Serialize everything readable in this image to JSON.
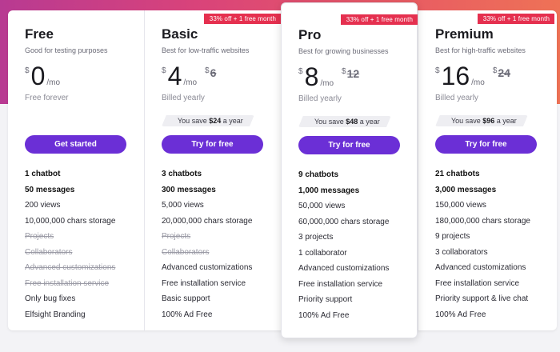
{
  "colors": {
    "accent_button": "#6b2fd6",
    "ribbon": "#e5304f",
    "gradient_start": "#b83a92",
    "gradient_end": "#ee7256"
  },
  "plans": [
    {
      "name": "Free",
      "subtitle": "Good for testing purposes",
      "currency": "$",
      "price": "0",
      "period": "/mo",
      "old_price": "",
      "billing": "Free forever",
      "ribbon": "",
      "save_prefix": "",
      "save_amount": "",
      "save_suffix": "",
      "button": "Get started",
      "features": [
        {
          "text": "1 chatbot",
          "style": "bold"
        },
        {
          "text": "50 messages",
          "style": "bold"
        },
        {
          "text": "200 views",
          "style": "normal"
        },
        {
          "text": "10,000,000 chars storage",
          "style": "normal"
        },
        {
          "text": "Projects",
          "style": "strike"
        },
        {
          "text": "Collaborators",
          "style": "strike"
        },
        {
          "text": "Advanced customizations",
          "style": "strike"
        },
        {
          "text": "Free installation service",
          "style": "strike"
        },
        {
          "text": "Only bug fixes",
          "style": "normal"
        },
        {
          "text": "Elfsight Branding",
          "style": "normal"
        }
      ]
    },
    {
      "name": "Basic",
      "subtitle": "Best for low-traffic websites",
      "currency": "$",
      "price": "4",
      "period": "/mo",
      "old_price": "6",
      "billing": "Billed yearly",
      "ribbon": "33% off + 1 free month",
      "save_prefix": "You save ",
      "save_amount": "$24",
      "save_suffix": " a year",
      "button": "Try for free",
      "features": [
        {
          "text": "3 chatbots",
          "style": "bold"
        },
        {
          "text": "300 messages",
          "style": "bold"
        },
        {
          "text": "5,000 views",
          "style": "normal"
        },
        {
          "text": "20,000,000 chars storage",
          "style": "normal"
        },
        {
          "text": "Projects",
          "style": "strike"
        },
        {
          "text": "Collaborators",
          "style": "strike"
        },
        {
          "text": "Advanced customizations",
          "style": "normal"
        },
        {
          "text": "Free installation service",
          "style": "normal"
        },
        {
          "text": "Basic support",
          "style": "normal"
        },
        {
          "text": "100% Ad Free",
          "style": "normal"
        }
      ]
    },
    {
      "name": "Pro",
      "subtitle": "Best for growing businesses",
      "currency": "$",
      "price": "8",
      "period": "/mo",
      "old_price": "12",
      "billing": "Billed yearly",
      "ribbon": "33% off + 1 free month",
      "save_prefix": "You save ",
      "save_amount": "$48",
      "save_suffix": " a year",
      "button": "Try for free",
      "features": [
        {
          "text": "9 chatbots",
          "style": "bold"
        },
        {
          "text": "1,000 messages",
          "style": "bold"
        },
        {
          "text": "50,000 views",
          "style": "normal"
        },
        {
          "text": "60,000,000 chars storage",
          "style": "normal"
        },
        {
          "text": "3 projects",
          "style": "normal"
        },
        {
          "text": "1 collaborator",
          "style": "normal"
        },
        {
          "text": "Advanced customizations",
          "style": "normal"
        },
        {
          "text": "Free installation service",
          "style": "normal"
        },
        {
          "text": "Priority support",
          "style": "normal"
        },
        {
          "text": "100% Ad Free",
          "style": "normal"
        }
      ]
    },
    {
      "name": "Premium",
      "subtitle": "Best for high-traffic websites",
      "currency": "$",
      "price": "16",
      "period": "/mo",
      "old_price": "24",
      "billing": "Billed yearly",
      "ribbon": "33% off + 1 free month",
      "save_prefix": "You save ",
      "save_amount": "$96",
      "save_suffix": " a year",
      "button": "Try for free",
      "features": [
        {
          "text": "21 chatbots",
          "style": "bold"
        },
        {
          "text": "3,000 messages",
          "style": "bold"
        },
        {
          "text": "150,000 views",
          "style": "normal"
        },
        {
          "text": "180,000,000 chars storage",
          "style": "normal"
        },
        {
          "text": "9 projects",
          "style": "normal"
        },
        {
          "text": "3 collaborators",
          "style": "normal"
        },
        {
          "text": "Advanced customizations",
          "style": "normal"
        },
        {
          "text": "Free installation service",
          "style": "normal"
        },
        {
          "text": "Priority support & live chat",
          "style": "normal"
        },
        {
          "text": "100% Ad Free",
          "style": "normal"
        }
      ]
    }
  ]
}
